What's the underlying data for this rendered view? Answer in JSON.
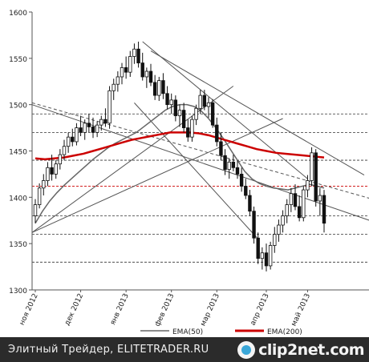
{
  "chart_data": {
    "type": "candlestick",
    "title": "",
    "ylim": [
      1300,
      1600
    ],
    "y_ticks": [
      1300,
      1350,
      1400,
      1450,
      1500,
      1550,
      1600
    ],
    "x_ticks": [
      "ноя 2012",
      "дек 2012",
      "янв 2013",
      "фев 2013",
      "мар 2013",
      "апр 2013",
      "май 2013"
    ],
    "grid": false,
    "legend_position": "bottom-right",
    "series": [
      {
        "name": "EMA(50)",
        "color": "#666666"
      },
      {
        "name": "EMA(200)",
        "color": "#cc0000"
      }
    ],
    "candles": [
      {
        "o": 1380,
        "h": 1398,
        "l": 1372,
        "c": 1392
      },
      {
        "o": 1392,
        "h": 1415,
        "l": 1388,
        "c": 1410
      },
      {
        "o": 1410,
        "h": 1425,
        "l": 1402,
        "c": 1418
      },
      {
        "o": 1418,
        "h": 1438,
        "l": 1412,
        "c": 1432
      },
      {
        "o": 1432,
        "h": 1446,
        "l": 1418,
        "c": 1425
      },
      {
        "o": 1425,
        "h": 1440,
        "l": 1420,
        "c": 1436
      },
      {
        "o": 1436,
        "h": 1452,
        "l": 1430,
        "c": 1446
      },
      {
        "o": 1446,
        "h": 1462,
        "l": 1440,
        "c": 1455
      },
      {
        "o": 1455,
        "h": 1470,
        "l": 1448,
        "c": 1465
      },
      {
        "o": 1465,
        "h": 1474,
        "l": 1455,
        "c": 1460
      },
      {
        "o": 1460,
        "h": 1480,
        "l": 1456,
        "c": 1475
      },
      {
        "o": 1475,
        "h": 1488,
        "l": 1466,
        "c": 1470
      },
      {
        "o": 1470,
        "h": 1484,
        "l": 1462,
        "c": 1480
      },
      {
        "o": 1480,
        "h": 1490,
        "l": 1470,
        "c": 1476
      },
      {
        "o": 1476,
        "h": 1486,
        "l": 1464,
        "c": 1470
      },
      {
        "o": 1470,
        "h": 1482,
        "l": 1465,
        "c": 1478
      },
      {
        "o": 1478,
        "h": 1488,
        "l": 1472,
        "c": 1484
      },
      {
        "o": 1484,
        "h": 1496,
        "l": 1476,
        "c": 1480
      },
      {
        "o": 1480,
        "h": 1520,
        "l": 1474,
        "c": 1515
      },
      {
        "o": 1515,
        "h": 1528,
        "l": 1505,
        "c": 1522
      },
      {
        "o": 1522,
        "h": 1536,
        "l": 1514,
        "c": 1530
      },
      {
        "o": 1530,
        "h": 1545,
        "l": 1522,
        "c": 1540
      },
      {
        "o": 1540,
        "h": 1552,
        "l": 1528,
        "c": 1535
      },
      {
        "o": 1535,
        "h": 1558,
        "l": 1530,
        "c": 1552
      },
      {
        "o": 1552,
        "h": 1566,
        "l": 1544,
        "c": 1560
      },
      {
        "o": 1560,
        "h": 1568,
        "l": 1540,
        "c": 1545
      },
      {
        "o": 1545,
        "h": 1556,
        "l": 1526,
        "c": 1530
      },
      {
        "o": 1530,
        "h": 1540,
        "l": 1518,
        "c": 1536
      },
      {
        "o": 1536,
        "h": 1544,
        "l": 1520,
        "c": 1524
      },
      {
        "o": 1524,
        "h": 1532,
        "l": 1505,
        "c": 1510
      },
      {
        "o": 1510,
        "h": 1530,
        "l": 1504,
        "c": 1526
      },
      {
        "o": 1526,
        "h": 1534,
        "l": 1506,
        "c": 1512
      },
      {
        "o": 1512,
        "h": 1520,
        "l": 1495,
        "c": 1500
      },
      {
        "o": 1500,
        "h": 1512,
        "l": 1490,
        "c": 1505
      },
      {
        "o": 1505,
        "h": 1510,
        "l": 1482,
        "c": 1488
      },
      {
        "o": 1488,
        "h": 1500,
        "l": 1476,
        "c": 1494
      },
      {
        "o": 1494,
        "h": 1502,
        "l": 1470,
        "c": 1475
      },
      {
        "o": 1475,
        "h": 1484,
        "l": 1460,
        "c": 1465
      },
      {
        "o": 1465,
        "h": 1488,
        "l": 1460,
        "c": 1484
      },
      {
        "o": 1484,
        "h": 1500,
        "l": 1478,
        "c": 1496
      },
      {
        "o": 1496,
        "h": 1516,
        "l": 1490,
        "c": 1510
      },
      {
        "o": 1510,
        "h": 1516,
        "l": 1494,
        "c": 1498
      },
      {
        "o": 1498,
        "h": 1508,
        "l": 1486,
        "c": 1502
      },
      {
        "o": 1502,
        "h": 1506,
        "l": 1475,
        "c": 1478
      },
      {
        "o": 1478,
        "h": 1486,
        "l": 1455,
        "c": 1460
      },
      {
        "o": 1460,
        "h": 1470,
        "l": 1440,
        "c": 1445
      },
      {
        "o": 1445,
        "h": 1452,
        "l": 1424,
        "c": 1430
      },
      {
        "o": 1430,
        "h": 1442,
        "l": 1420,
        "c": 1438
      },
      {
        "o": 1438,
        "h": 1446,
        "l": 1428,
        "c": 1432
      },
      {
        "o": 1432,
        "h": 1440,
        "l": 1420,
        "c": 1425
      },
      {
        "o": 1425,
        "h": 1432,
        "l": 1406,
        "c": 1412
      },
      {
        "o": 1412,
        "h": 1420,
        "l": 1398,
        "c": 1402
      },
      {
        "o": 1402,
        "h": 1408,
        "l": 1380,
        "c": 1385
      },
      {
        "o": 1385,
        "h": 1390,
        "l": 1350,
        "c": 1356
      },
      {
        "o": 1356,
        "h": 1362,
        "l": 1328,
        "c": 1334
      },
      {
        "o": 1334,
        "h": 1346,
        "l": 1322,
        "c": 1340
      },
      {
        "o": 1340,
        "h": 1350,
        "l": 1320,
        "c": 1326
      },
      {
        "o": 1326,
        "h": 1352,
        "l": 1322,
        "c": 1348
      },
      {
        "o": 1348,
        "h": 1368,
        "l": 1340,
        "c": 1360
      },
      {
        "o": 1360,
        "h": 1376,
        "l": 1352,
        "c": 1370
      },
      {
        "o": 1370,
        "h": 1386,
        "l": 1362,
        "c": 1380
      },
      {
        "o": 1380,
        "h": 1398,
        "l": 1372,
        "c": 1392
      },
      {
        "o": 1392,
        "h": 1410,
        "l": 1384,
        "c": 1404
      },
      {
        "o": 1404,
        "h": 1414,
        "l": 1386,
        "c": 1390
      },
      {
        "o": 1390,
        "h": 1402,
        "l": 1374,
        "c": 1378
      },
      {
        "o": 1378,
        "h": 1412,
        "l": 1374,
        "c": 1408
      },
      {
        "o": 1408,
        "h": 1424,
        "l": 1400,
        "c": 1418
      },
      {
        "o": 1418,
        "h": 1454,
        "l": 1412,
        "c": 1448
      },
      {
        "o": 1448,
        "h": 1452,
        "l": 1390,
        "c": 1396
      },
      {
        "o": 1396,
        "h": 1410,
        "l": 1380,
        "c": 1402
      },
      {
        "o": 1402,
        "h": 1408,
        "l": 1362,
        "c": 1372
      }
    ],
    "ema50": [
      1372,
      1385,
      1396,
      1405,
      1413,
      1420,
      1427,
      1434,
      1441,
      1447,
      1453,
      1458,
      1462,
      1466,
      1470,
      1476,
      1482,
      1488,
      1494,
      1498,
      1500,
      1500,
      1498,
      1493,
      1485,
      1475,
      1464,
      1452,
      1440,
      1428,
      1420,
      1415,
      1412,
      1410,
      1409,
      1408,
      1410,
      1412,
      1414,
      1412,
      1410
    ],
    "ema200": [
      1442,
      1441,
      1442,
      1443,
      1445,
      1447,
      1450,
      1453,
      1456,
      1459,
      1462,
      1464,
      1466,
      1468,
      1470,
      1470,
      1470,
      1469,
      1467,
      1464,
      1461,
      1458,
      1455,
      1452,
      1450,
      1448,
      1447,
      1446,
      1445,
      1444,
      1443
    ],
    "trend_lines": [
      {
        "from": [
          0,
          1500
        ],
        "to": [
          72,
          1374
        ],
        "style": "solid"
      },
      {
        "from": [
          0,
          1362
        ],
        "to": [
          60,
          1485
        ],
        "style": "solid"
      },
      {
        "from": [
          0,
          1362
        ],
        "to": [
          48,
          1520
        ],
        "style": "solid"
      },
      {
        "from": [
          0,
          1502
        ],
        "to": [
          72,
          1398
        ],
        "style": "dashed"
      },
      {
        "from": [
          26,
          1568
        ],
        "to": [
          66,
          1420
        ],
        "style": "solid"
      },
      {
        "from": [
          28,
          1558
        ],
        "to": [
          70,
          1424
        ],
        "style": "solid"
      },
      {
        "from": [
          24,
          1502
        ],
        "to": [
          54,
          1355
        ],
        "style": "solid"
      }
    ],
    "horizontal_levels": [
      {
        "y": 1490,
        "style": "dashed",
        "color": "#333333"
      },
      {
        "y": 1470,
        "style": "dashed",
        "color": "#333333"
      },
      {
        "y": 1440,
        "style": "dashed",
        "color": "#333333"
      },
      {
        "y": 1412,
        "style": "dashed",
        "color": "#cc0000"
      },
      {
        "y": 1380,
        "style": "dashed",
        "color": "#333333"
      },
      {
        "y": 1360,
        "style": "dashed",
        "color": "#333333"
      },
      {
        "y": 1330,
        "style": "dashed",
        "color": "#333333"
      }
    ]
  },
  "footer": {
    "caption": "Элитный Трейдер, ELITETRADER.RU",
    "brand": "clip2net.com"
  }
}
